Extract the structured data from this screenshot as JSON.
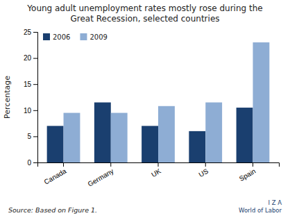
{
  "chart_data": {
    "type": "bar",
    "title": "Young adult unemployment rates mostly rose during the\nGreat Recession, selected countries",
    "categories": [
      "Canada",
      "Germany",
      "UK",
      "US",
      "Spain"
    ],
    "series": [
      {
        "name": "2006",
        "color": "#1a3f6f",
        "values": [
          7.0,
          11.5,
          7.0,
          6.0,
          10.5
        ]
      },
      {
        "name": "2009",
        "color": "#8eadd4",
        "values": [
          9.5,
          9.5,
          10.8,
          11.5,
          23.0
        ]
      }
    ],
    "ylabel": "Percentage",
    "ylim": [
      0,
      25
    ],
    "yticks": [
      0,
      5,
      10,
      15,
      20,
      25
    ],
    "grid": false,
    "legend": "upper-left",
    "annotations": [
      "Source: Based on Figure 1.",
      "I  Z  A\nWorld of Labor"
    ]
  }
}
